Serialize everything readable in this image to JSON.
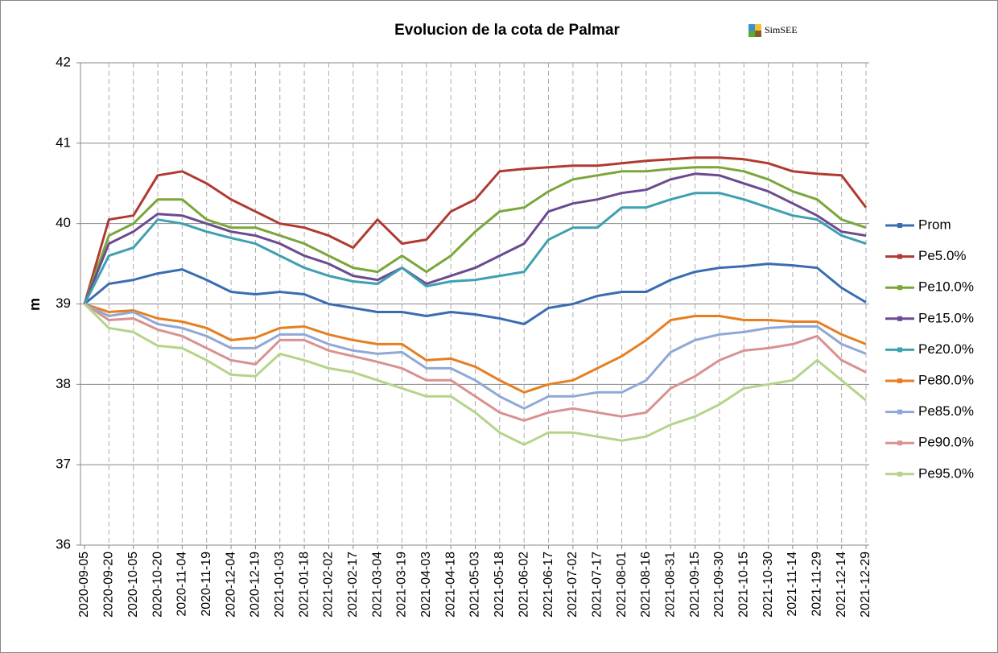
{
  "chart_data": {
    "type": "line",
    "title": "Evolucion de la cota de Palmar",
    "logo": "SimSEE",
    "y_label": "m",
    "x": [
      "2020-09-05",
      "2020-09-20",
      "2020-10-05",
      "2020-10-20",
      "2020-11-04",
      "2020-11-19",
      "2020-12-04",
      "2020-12-19",
      "2021-01-03",
      "2021-01-18",
      "2021-02-02",
      "2021-02-17",
      "2021-03-04",
      "2021-03-19",
      "2021-04-03",
      "2021-04-18",
      "2021-05-03",
      "2021-05-18",
      "2021-06-02",
      "2021-06-17",
      "2021-07-02",
      "2021-07-17",
      "2021-08-01",
      "2021-08-16",
      "2021-08-31",
      "2021-09-15",
      "2021-09-30",
      "2021-10-15",
      "2021-10-30",
      "2021-11-14",
      "2021-11-29",
      "2021-12-14",
      "2021-12-29"
    ],
    "ylim": [
      36,
      42
    ],
    "yticks": [
      36,
      37,
      38,
      39,
      40,
      41,
      42
    ],
    "grid": true,
    "legend": "right",
    "series": [
      {
        "name": "Prom",
        "color": "#3a6db0",
        "values": [
          39.0,
          39.25,
          39.3,
          39.38,
          39.43,
          39.3,
          39.15,
          39.12,
          39.15,
          39.12,
          39.0,
          38.95,
          38.9,
          38.9,
          38.85,
          38.9,
          38.87,
          38.82,
          38.75,
          38.95,
          39.0,
          39.1,
          39.15,
          39.15,
          39.3,
          39.4,
          39.45,
          39.47,
          39.5,
          39.48,
          39.45,
          39.2,
          39.02
        ]
      },
      {
        "name": "Pe5.0%",
        "color": "#b03a32",
        "values": [
          39.0,
          40.05,
          40.1,
          40.6,
          40.65,
          40.5,
          40.3,
          40.15,
          40.0,
          39.95,
          39.85,
          39.7,
          40.05,
          39.75,
          39.8,
          40.15,
          40.3,
          40.65,
          40.68,
          40.7,
          40.72,
          40.72,
          40.75,
          40.78,
          40.8,
          40.82,
          40.82,
          40.8,
          40.75,
          40.65,
          40.62,
          40.6,
          40.2
        ]
      },
      {
        "name": "Pe10.0%",
        "color": "#7aa63a",
        "values": [
          39.0,
          39.85,
          40.0,
          40.3,
          40.3,
          40.05,
          39.95,
          39.95,
          39.85,
          39.75,
          39.6,
          39.45,
          39.4,
          39.6,
          39.4,
          39.6,
          39.9,
          40.15,
          40.2,
          40.4,
          40.55,
          40.6,
          40.65,
          40.65,
          40.68,
          40.7,
          40.7,
          40.65,
          40.55,
          40.4,
          40.3,
          40.05,
          39.95
        ]
      },
      {
        "name": "Pe15.0%",
        "color": "#6b4a8f",
        "values": [
          39.0,
          39.75,
          39.9,
          40.12,
          40.1,
          40.0,
          39.9,
          39.85,
          39.75,
          39.6,
          39.5,
          39.35,
          39.3,
          39.45,
          39.25,
          39.35,
          39.45,
          39.6,
          39.75,
          40.15,
          40.25,
          40.3,
          40.38,
          40.42,
          40.55,
          40.62,
          40.6,
          40.5,
          40.4,
          40.25,
          40.1,
          39.9,
          39.85
        ]
      },
      {
        "name": "Pe20.0%",
        "color": "#3ea0b0",
        "values": [
          39.0,
          39.6,
          39.7,
          40.05,
          40.0,
          39.9,
          39.82,
          39.75,
          39.6,
          39.45,
          39.35,
          39.28,
          39.25,
          39.45,
          39.22,
          39.28,
          39.3,
          39.35,
          39.4,
          39.8,
          39.95,
          39.95,
          40.2,
          40.2,
          40.3,
          40.38,
          40.38,
          40.3,
          40.2,
          40.1,
          40.05,
          39.85,
          39.75
        ]
      },
      {
        "name": "Pe80.0%",
        "color": "#e67e22",
        "values": [
          39.0,
          38.9,
          38.92,
          38.82,
          38.78,
          38.7,
          38.55,
          38.58,
          38.7,
          38.72,
          38.62,
          38.55,
          38.5,
          38.5,
          38.3,
          38.32,
          38.22,
          38.05,
          37.9,
          38.0,
          38.05,
          38.2,
          38.35,
          38.55,
          38.8,
          38.85,
          38.85,
          38.8,
          38.8,
          38.78,
          38.78,
          38.62,
          38.5
        ]
      },
      {
        "name": "Pe85.0%",
        "color": "#90a8d6",
        "values": [
          39.0,
          38.85,
          38.9,
          38.75,
          38.7,
          38.6,
          38.45,
          38.45,
          38.62,
          38.62,
          38.5,
          38.42,
          38.38,
          38.4,
          38.2,
          38.2,
          38.05,
          37.85,
          37.7,
          37.85,
          37.85,
          37.9,
          37.9,
          38.05,
          38.4,
          38.55,
          38.62,
          38.65,
          38.7,
          38.72,
          38.72,
          38.5,
          38.38
        ]
      },
      {
        "name": "Pe90.0%",
        "color": "#d99191",
        "values": [
          39.0,
          38.8,
          38.82,
          38.68,
          38.6,
          38.45,
          38.3,
          38.25,
          38.55,
          38.55,
          38.42,
          38.35,
          38.28,
          38.2,
          38.05,
          38.05,
          37.85,
          37.65,
          37.55,
          37.65,
          37.7,
          37.65,
          37.6,
          37.65,
          37.95,
          38.1,
          38.3,
          38.42,
          38.45,
          38.5,
          38.6,
          38.3,
          38.15
        ]
      },
      {
        "name": "Pe95.0%",
        "color": "#b5d48a",
        "values": [
          39.0,
          38.7,
          38.65,
          38.48,
          38.45,
          38.3,
          38.12,
          38.1,
          38.38,
          38.3,
          38.2,
          38.15,
          38.05,
          37.95,
          37.85,
          37.85,
          37.65,
          37.4,
          37.25,
          37.4,
          37.4,
          37.35,
          37.3,
          37.35,
          37.5,
          37.6,
          37.75,
          37.95,
          38.0,
          38.05,
          38.3,
          38.05,
          37.8
        ]
      }
    ]
  }
}
